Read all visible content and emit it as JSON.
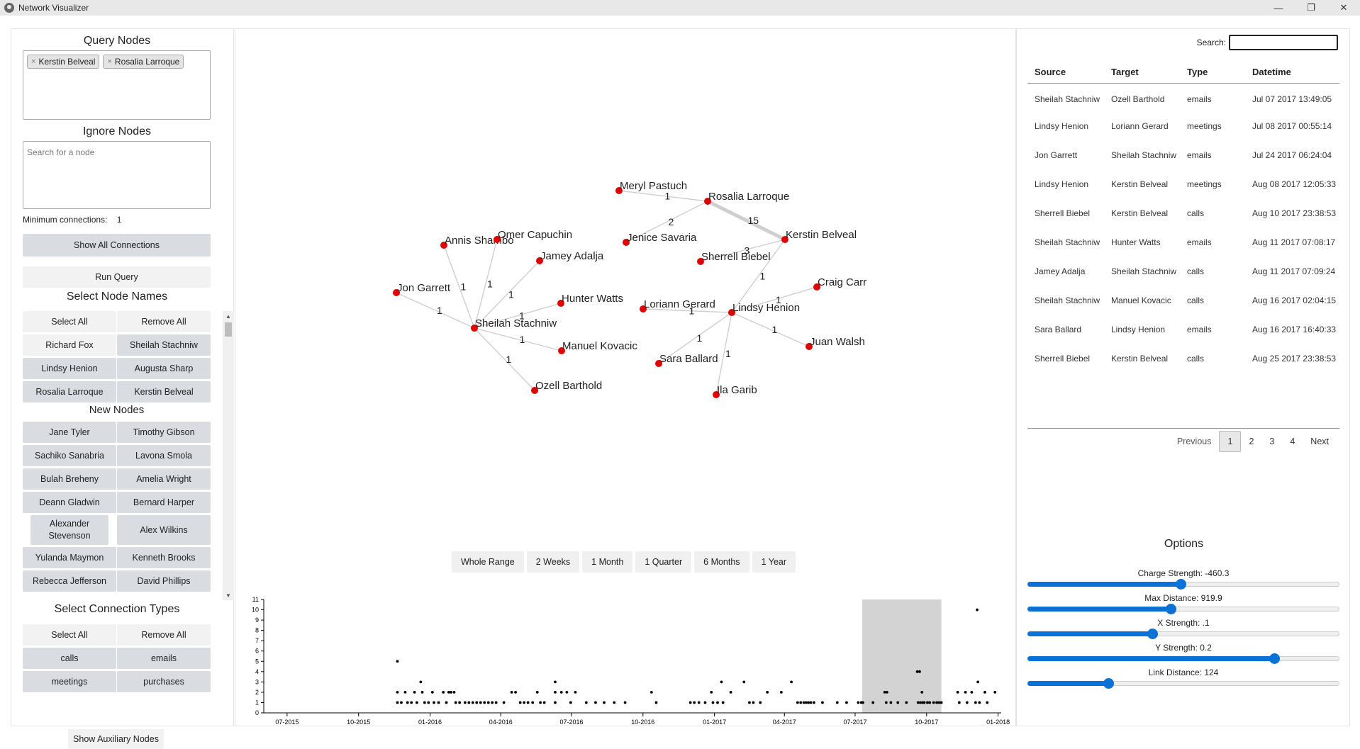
{
  "window": {
    "title": "Network Visualizer",
    "minimize": "—",
    "maximize": "❐",
    "close": "✕"
  },
  "left": {
    "query_title": "Query Nodes",
    "query_tags": [
      "Kerstin Belveal",
      "Rosalia Larroque"
    ],
    "tag_remove": "×",
    "ignore_title": "Ignore Nodes",
    "ignore_placeholder": "Search for a node",
    "min_conn_label": "Minimum connections:",
    "min_conn_value": "1",
    "show_all": "Show All Connections",
    "run_query": "Run Query",
    "select_names_title": "Select Node Names",
    "select_all": "Select All",
    "remove_all": "Remove All",
    "name_buttons": [
      {
        "label": "Richard Fox",
        "selected": false
      },
      {
        "label": "Sheilah Stachniw",
        "selected": true
      },
      {
        "label": "Lindsy Henion",
        "selected": true
      },
      {
        "label": "Augusta Sharp",
        "selected": true
      },
      {
        "label": "Rosalia Larroque",
        "selected": true
      },
      {
        "label": "Kerstin Belveal",
        "selected": true
      }
    ],
    "new_nodes_title": "New Nodes",
    "new_nodes": [
      "Jane Tyler",
      "Timothy Gibson",
      "Sachiko Sanabria",
      "Lavona Smola",
      "Bulah Breheny",
      "Amelia Wright",
      "Deann Gladwin",
      "Bernard Harper",
      "Alexander Stevenson",
      "Alex Wilkins",
      "Yulanda Maymon",
      "Kenneth Brooks",
      "Rebecca Jefferson",
      "David Phillips"
    ],
    "conn_types_title": "Select Connection Types",
    "conn_types": [
      "calls",
      "emails",
      "meetings",
      "purchases"
    ],
    "show_aux": "Show Auxiliary Nodes"
  },
  "graph": {
    "nodes": [
      {
        "id": "Meryl Pastuch",
        "label": "Meryl Pastuch"
      },
      {
        "id": "Rosalia Larroque",
        "label": "Rosalia Larroque"
      },
      {
        "id": "Kerstin Belveal",
        "label": "Kerstin Belveal"
      },
      {
        "id": "Jenice Savaria",
        "label": "Jenice Savaria"
      },
      {
        "id": "Sherrell Biebel",
        "label": "Sherrell Biebel"
      },
      {
        "id": "Annis Shambo",
        "label": "Annis Shambo"
      },
      {
        "id": "Omer Capuchin",
        "label": "Omer Capuchin"
      },
      {
        "id": "Jamey Adalja",
        "label": "Jamey Adalja"
      },
      {
        "id": "Jon Garrett",
        "label": "Jon Garrett"
      },
      {
        "id": "Hunter Watts",
        "label": "Hunter Watts"
      },
      {
        "id": "Sheilah Stachniw",
        "label": "Sheilah Stachniw"
      },
      {
        "id": "Manuel Kovacic",
        "label": "Manuel Kovacic"
      },
      {
        "id": "Ozell Barthold",
        "label": "Ozell Barthold"
      },
      {
        "id": "Loriann Gerard",
        "label": "Loriann Gerard"
      },
      {
        "id": "Lindsy Henion",
        "label": "Lindsy Henion"
      },
      {
        "id": "Craig Carr",
        "label": "Craig Carr"
      },
      {
        "id": "Juan Walsh",
        "label": "Juan Walsh"
      },
      {
        "id": "Sara Ballard",
        "label": "Sara Ballard"
      },
      {
        "id": "Ila Garib",
        "label": "Ila Garib"
      }
    ],
    "links": [
      {
        "source": "Meryl Pastuch",
        "target": "Rosalia Larroque",
        "weight": "1"
      },
      {
        "source": "Jenice Savaria",
        "target": "Rosalia Larroque",
        "weight": "2"
      },
      {
        "source": "Rosalia Larroque",
        "target": "Kerstin Belveal",
        "weight": "15"
      },
      {
        "source": "Sherrell Biebel",
        "target": "Kerstin Belveal",
        "weight": "3"
      },
      {
        "source": "Lindsy Henion",
        "target": "Kerstin Belveal",
        "weight": "1"
      },
      {
        "source": "Annis Shambo",
        "target": "Sheilah Stachniw",
        "weight": "1"
      },
      {
        "source": "Omer Capuchin",
        "target": "Sheilah Stachniw",
        "weight": "1"
      },
      {
        "source": "Jamey Adalja",
        "target": "Sheilah Stachniw",
        "weight": "1"
      },
      {
        "source": "Jon Garrett",
        "target": "Sheilah Stachniw",
        "weight": "1"
      },
      {
        "source": "Hunter Watts",
        "target": "Sheilah Stachniw",
        "weight": "1"
      },
      {
        "source": "Manuel Kovacic",
        "target": "Sheilah Stachniw",
        "weight": "1"
      },
      {
        "source": "Ozell Barthold",
        "target": "Sheilah Stachniw",
        "weight": "1"
      },
      {
        "source": "Loriann Gerard",
        "target": "Lindsy Henion",
        "weight": "1"
      },
      {
        "source": "Craig Carr",
        "target": "Lindsy Henion",
        "weight": "1"
      },
      {
        "source": "Juan Walsh",
        "target": "Lindsy Henion",
        "weight": "1"
      },
      {
        "source": "Sara Ballard",
        "target": "Lindsy Henion",
        "weight": "1"
      },
      {
        "source": "Ila Garib",
        "target": "Lindsy Henion",
        "weight": "1"
      }
    ],
    "node_color": "#e00000",
    "link_color": "#cfcfcf"
  },
  "range_buttons": [
    "Whole Range",
    "2 Weeks",
    "1 Month",
    "1 Quarter",
    "6 Months",
    "1 Year"
  ],
  "chart_data": {
    "type": "scatter",
    "x_ticks": [
      "07-2015",
      "10-2015",
      "01-2016",
      "04-2016",
      "07-2016",
      "10-2016",
      "01-2017",
      "04-2017",
      "07-2017",
      "10-2017",
      "01-2018"
    ],
    "y_ticks": [
      "0",
      "1",
      "2",
      "3",
      "4",
      "5",
      "6",
      "7",
      "8",
      "9",
      "10",
      "11"
    ],
    "ylim": [
      0,
      11
    ],
    "xlim": [
      "2015-06-01",
      "2018-01-05"
    ],
    "brush": [
      "2017-07-10",
      "2017-10-20"
    ],
    "points": [
      [
        "2015-11-20",
        5
      ],
      [
        "2015-11-20",
        2
      ],
      [
        "2015-11-20",
        1
      ],
      [
        "2015-11-25",
        1
      ],
      [
        "2015-11-30",
        2
      ],
      [
        "2015-12-03",
        1
      ],
      [
        "2015-12-08",
        1
      ],
      [
        "2015-12-12",
        2
      ],
      [
        "2015-12-15",
        1
      ],
      [
        "2015-12-20",
        3
      ],
      [
        "2015-12-22",
        2
      ],
      [
        "2015-12-25",
        1
      ],
      [
        "2015-12-30",
        1
      ],
      [
        "2016-01-04",
        2
      ],
      [
        "2016-01-06",
        1
      ],
      [
        "2016-01-12",
        1
      ],
      [
        "2016-01-18",
        2
      ],
      [
        "2016-01-22",
        1
      ],
      [
        "2016-01-25",
        2
      ],
      [
        "2016-01-28",
        2
      ],
      [
        "2016-02-01",
        2
      ],
      [
        "2016-02-03",
        1
      ],
      [
        "2016-02-08",
        1
      ],
      [
        "2016-02-15",
        1
      ],
      [
        "2016-02-20",
        1
      ],
      [
        "2016-02-25",
        1
      ],
      [
        "2016-03-01",
        1
      ],
      [
        "2016-03-06",
        1
      ],
      [
        "2016-03-11",
        1
      ],
      [
        "2016-03-16",
        1
      ],
      [
        "2016-03-21",
        1
      ],
      [
        "2016-03-26",
        1
      ],
      [
        "2016-04-05",
        1
      ],
      [
        "2016-04-15",
        2
      ],
      [
        "2016-04-20",
        2
      ],
      [
        "2016-04-26",
        1
      ],
      [
        "2016-05-01",
        1
      ],
      [
        "2016-05-06",
        1
      ],
      [
        "2016-05-12",
        1
      ],
      [
        "2016-05-18",
        2
      ],
      [
        "2016-05-22",
        1
      ],
      [
        "2016-05-27",
        1
      ],
      [
        "2016-06-10",
        3
      ],
      [
        "2016-06-10",
        2
      ],
      [
        "2016-06-10",
        1
      ],
      [
        "2016-06-18",
        2
      ],
      [
        "2016-06-25",
        2
      ],
      [
        "2016-06-30",
        1
      ],
      [
        "2016-07-06",
        2
      ],
      [
        "2016-07-20",
        1
      ],
      [
        "2016-08-01",
        1
      ],
      [
        "2016-08-12",
        1
      ],
      [
        "2016-08-25",
        1
      ],
      [
        "2016-09-08",
        1
      ],
      [
        "2016-10-12",
        2
      ],
      [
        "2016-10-18",
        1
      ],
      [
        "2016-12-01",
        1
      ],
      [
        "2016-12-06",
        1
      ],
      [
        "2016-12-12",
        1
      ],
      [
        "2016-12-20",
        1
      ],
      [
        "2016-12-28",
        2
      ],
      [
        "2016-12-30",
        1
      ],
      [
        "2017-01-05",
        1
      ],
      [
        "2017-01-10",
        3
      ],
      [
        "2017-01-12",
        1
      ],
      [
        "2017-01-22",
        2
      ],
      [
        "2017-02-08",
        3
      ],
      [
        "2017-02-15",
        1
      ],
      [
        "2017-02-20",
        1
      ],
      [
        "2017-03-01",
        1
      ],
      [
        "2017-03-10",
        2
      ],
      [
        "2017-03-28",
        2
      ],
      [
        "2017-04-10",
        3
      ],
      [
        "2017-04-18",
        1
      ],
      [
        "2017-04-22",
        1
      ],
      [
        "2017-04-26",
        1
      ],
      [
        "2017-04-29",
        1
      ],
      [
        "2017-05-02",
        1
      ],
      [
        "2017-05-05",
        1
      ],
      [
        "2017-05-09",
        1
      ],
      [
        "2017-05-20",
        1
      ],
      [
        "2017-06-08",
        1
      ],
      [
        "2017-06-20",
        1
      ],
      [
        "2017-07-05",
        1
      ],
      [
        "2017-07-09",
        1
      ],
      [
        "2017-07-11",
        1
      ],
      [
        "2017-07-24",
        1
      ],
      [
        "2017-08-08",
        2
      ],
      [
        "2017-08-10",
        1
      ],
      [
        "2017-08-11",
        2
      ],
      [
        "2017-08-16",
        1
      ],
      [
        "2017-08-25",
        1
      ],
      [
        "2017-09-05",
        1
      ],
      [
        "2017-09-19",
        4
      ],
      [
        "2017-09-22",
        4
      ],
      [
        "2017-09-25",
        2
      ],
      [
        "2017-09-20",
        1
      ],
      [
        "2017-09-23",
        1
      ],
      [
        "2017-09-26",
        1
      ],
      [
        "2017-09-28",
        1
      ],
      [
        "2017-10-02",
        1
      ],
      [
        "2017-10-05",
        1
      ],
      [
        "2017-10-10",
        1
      ],
      [
        "2017-10-14",
        1
      ],
      [
        "2017-10-17",
        1
      ],
      [
        "2017-10-20",
        1
      ],
      [
        "2017-11-10",
        2
      ],
      [
        "2017-11-12",
        1
      ],
      [
        "2017-11-20",
        2
      ],
      [
        "2017-11-22",
        1
      ],
      [
        "2017-11-28",
        2
      ],
      [
        "2017-12-03",
        1
      ],
      [
        "2017-12-06",
        3
      ],
      [
        "2017-12-08",
        1
      ],
      [
        "2017-12-15",
        2
      ],
      [
        "2017-12-18",
        1
      ],
      [
        "2017-12-05",
        10
      ],
      [
        "2017-12-28",
        2
      ]
    ]
  },
  "right": {
    "search_label": "Search:",
    "search_value": "",
    "columns": [
      "Source",
      "Target",
      "Type",
      "Datetime"
    ],
    "rows": [
      [
        "Sheilah Stachniw",
        "Ozell Barthold",
        "emails",
        "Jul 07 2017 13:49:05"
      ],
      [
        "Lindsy Henion",
        "Loriann Gerard",
        "meetings",
        "Jul 08 2017 00:55:14"
      ],
      [
        "Jon Garrett",
        "Sheilah Stachniw",
        "emails",
        "Jul 24 2017 06:24:04"
      ],
      [
        "Lindsy Henion",
        "Kerstin Belveal",
        "meetings",
        "Aug 08 2017 12:05:33"
      ],
      [
        "Sherrell Biebel",
        "Kerstin Belveal",
        "calls",
        "Aug 10 2017 23:38:53"
      ],
      [
        "Sheilah Stachniw",
        "Hunter Watts",
        "emails",
        "Aug 11 2017 07:08:17"
      ],
      [
        "Jamey Adalja",
        "Sheilah Stachniw",
        "calls",
        "Aug 11 2017 07:09:24"
      ],
      [
        "Sheilah Stachniw",
        "Manuel Kovacic",
        "calls",
        "Aug 16 2017 02:04:15"
      ],
      [
        "Sara Ballard",
        "Lindsy Henion",
        "emails",
        "Aug 16 2017 16:40:33"
      ],
      [
        "Sherrell Biebel",
        "Kerstin Belveal",
        "calls",
        "Aug 25 2017 23:38:53"
      ]
    ],
    "pager": {
      "previous": "Previous",
      "pages": [
        "1",
        "2",
        "3",
        "4"
      ],
      "active": "1",
      "next": "Next"
    },
    "options_title": "Options",
    "sliders": [
      {
        "label": "Charge Strength: -460.3",
        "fraction": 0.49
      },
      {
        "label": "Max Distance: 919.9",
        "fraction": 0.46
      },
      {
        "label": "X Strength: .1",
        "fraction": 0.4
      },
      {
        "label": "Y Strength: 0.2",
        "fraction": 0.79
      },
      {
        "label": "Link Distance: 124",
        "fraction": 0.26
      }
    ],
    "accent_color": "#0a72d6"
  }
}
